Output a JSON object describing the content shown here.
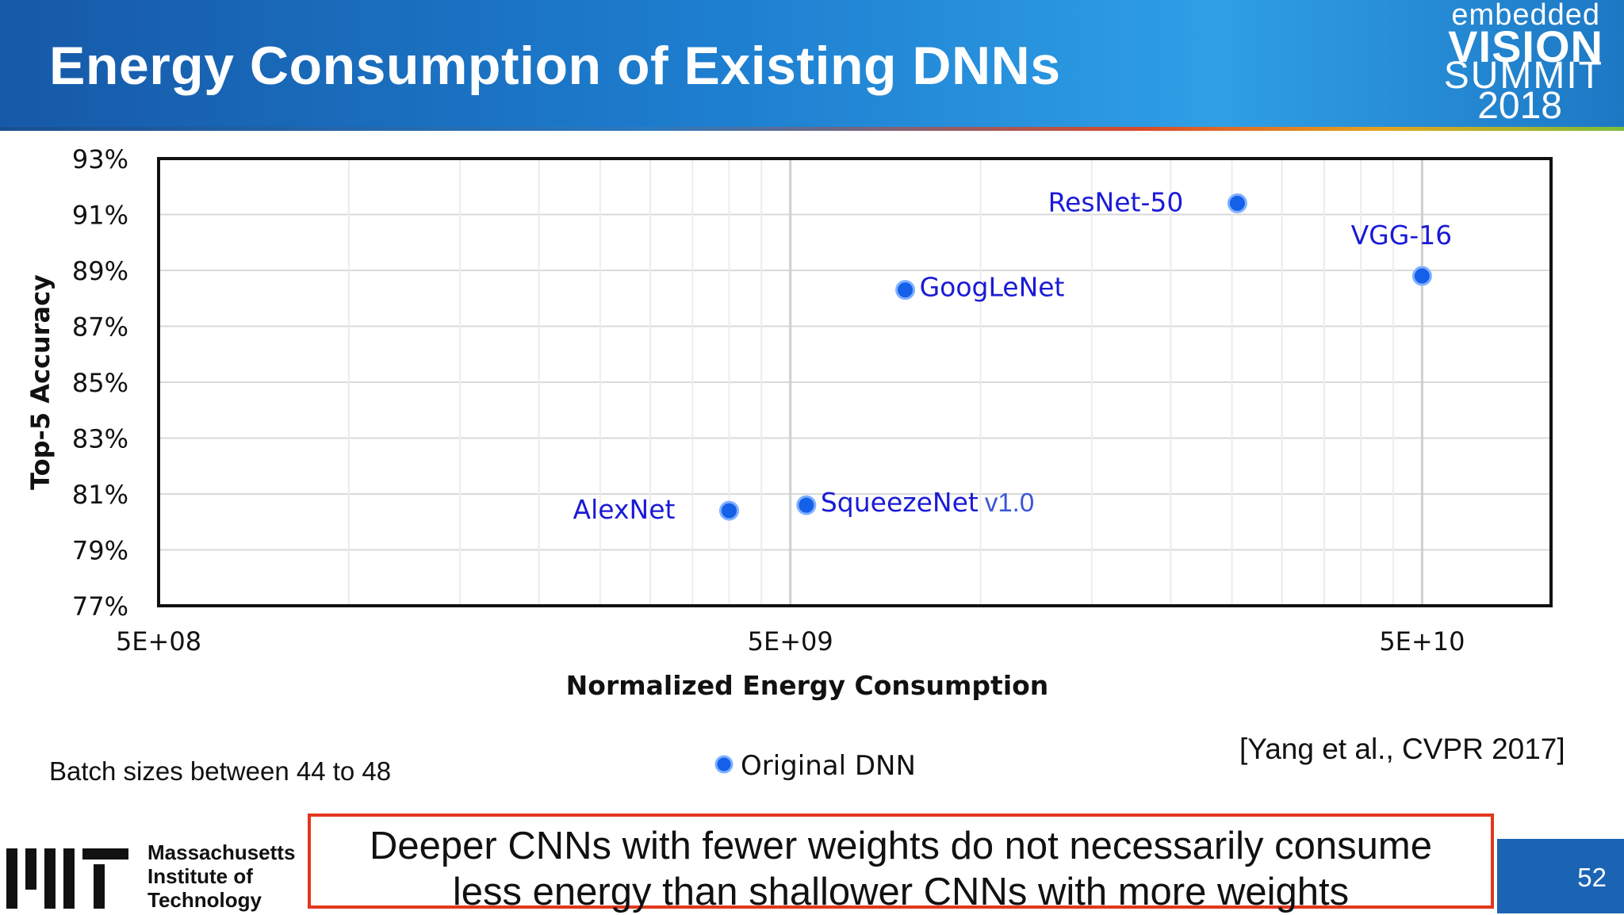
{
  "header": {
    "title": "Energy Consumption of Existing DNNs",
    "logo": {
      "line1": "embedded",
      "line2": "VISION",
      "line3": "SUMMIT",
      "line4": "2018"
    }
  },
  "chart_data": {
    "type": "scatter",
    "xlabel": "Normalized Energy Consumption",
    "ylabel": "Top-5 Accuracy",
    "x_scale": "log",
    "xlim": [
      500000000,
      80000000000
    ],
    "ylim": [
      77,
      93
    ],
    "x_ticks": [
      {
        "value": 500000000,
        "label": "5E+08"
      },
      {
        "value": 5000000000,
        "label": "5E+09"
      },
      {
        "value": 50000000000,
        "label": "5E+10"
      }
    ],
    "y_ticks": [
      {
        "value": 93,
        "label": "93%"
      },
      {
        "value": 91,
        "label": "91%"
      },
      {
        "value": 89,
        "label": "89%"
      },
      {
        "value": 87,
        "label": "87%"
      },
      {
        "value": 85,
        "label": "85%"
      },
      {
        "value": 83,
        "label": "83%"
      },
      {
        "value": 81,
        "label": "81%"
      },
      {
        "value": 79,
        "label": "79%"
      },
      {
        "value": 77,
        "label": "77%"
      }
    ],
    "grid": true,
    "point_color": "#1560e8",
    "label_color": "#1a1ad6",
    "legend_entry": "Original DNN",
    "legend_position": "bottom-center",
    "series": [
      {
        "points": [
          {
            "label": "AlexNet",
            "x": 4000000000,
            "y": 80.4,
            "label_side": "left"
          },
          {
            "label": "SqueezeNet",
            "label_suffix": "v1.0",
            "x": 5300000000,
            "y": 80.6,
            "label_side": "right"
          },
          {
            "label": "GoogLeNet",
            "x": 7600000000,
            "y": 88.3,
            "label_side": "right"
          },
          {
            "label": "ResNet-50",
            "x": 25500000000,
            "y": 91.4,
            "label_side": "left"
          },
          {
            "label": "VGG-16",
            "x": 50000000000,
            "y": 88.8,
            "label_side": "above"
          }
        ]
      }
    ]
  },
  "notes": {
    "batch": "Batch sizes between 44 to 48",
    "citation": "[Yang et al., CVPR 2017]"
  },
  "footer": {
    "institution": [
      "Massachusetts",
      "Institute of",
      "Technology"
    ],
    "takeaway_line1": "Deeper CNNs with fewer weights do not necessarily consume",
    "takeaway_line2": "less energy than shallower CNNs with more weights",
    "page_number": "52"
  }
}
